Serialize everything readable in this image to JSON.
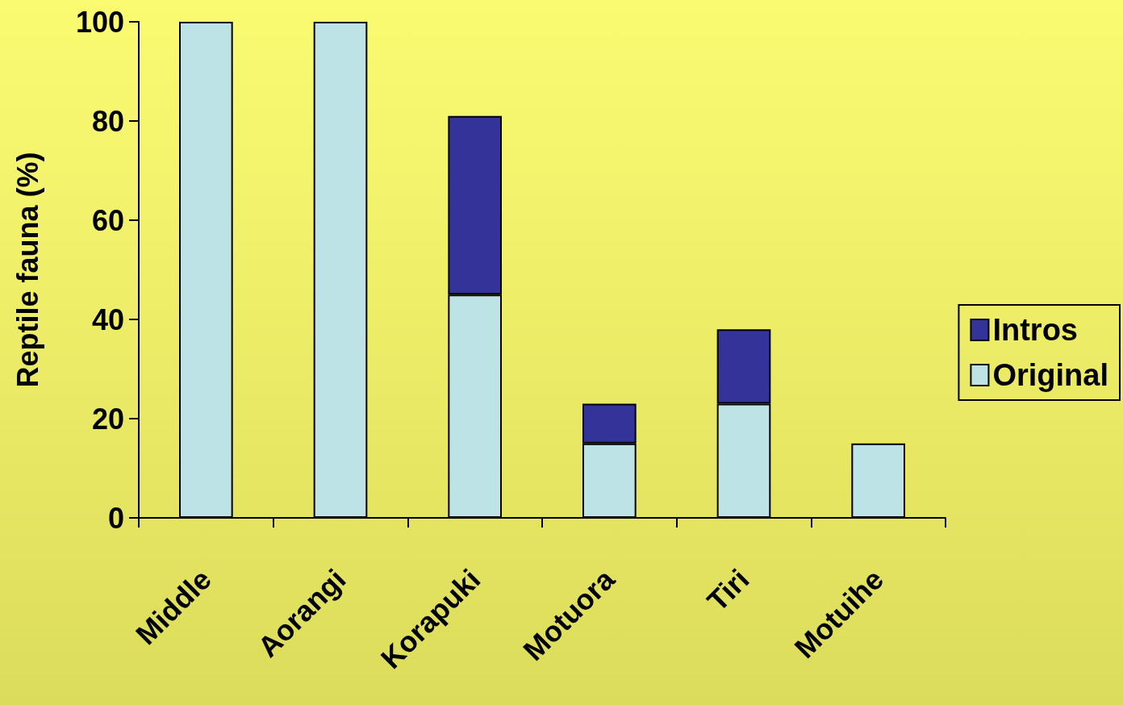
{
  "chart_data": {
    "type": "bar",
    "ylabel": "Reptile fauna (%)",
    "categories": [
      "Middle",
      "Aorangi",
      "Korapuki",
      "Motuora",
      "Tiri",
      "Motuihe"
    ],
    "stacked": true,
    "ylim": [
      0,
      100
    ],
    "yticks": [
      0,
      20,
      40,
      60,
      80,
      100
    ],
    "legend": "right",
    "series": [
      {
        "name": "Original",
        "color": "#bde3e6",
        "values": [
          100,
          100,
          45,
          15,
          23,
          15
        ]
      },
      {
        "name": "Intros",
        "color": "#333399",
        "values": [
          null,
          null,
          36,
          8,
          15,
          null
        ]
      }
    ]
  }
}
